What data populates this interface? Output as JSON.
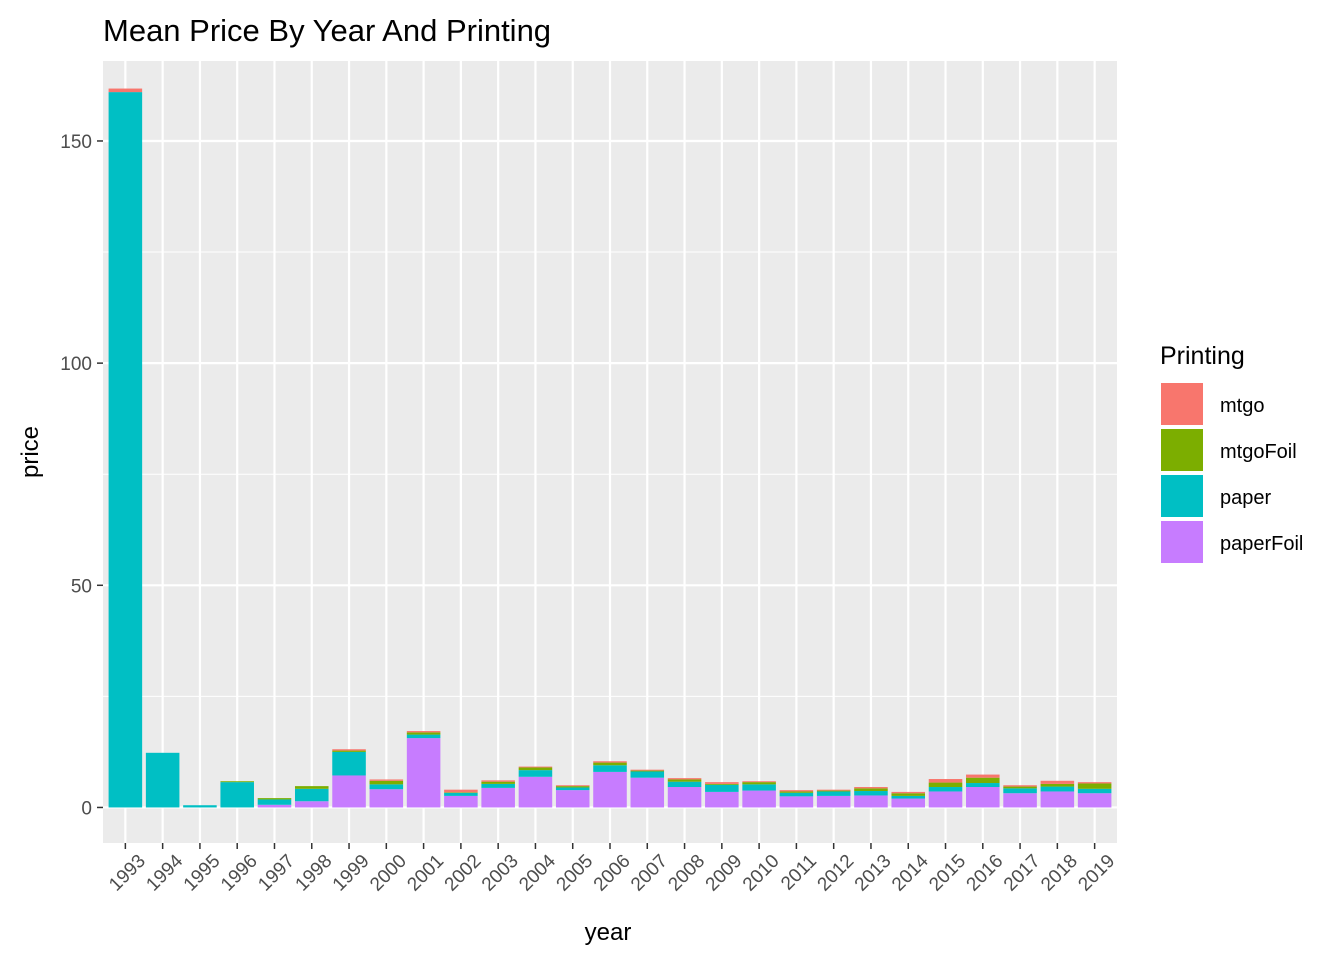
{
  "chart_data": {
    "type": "bar",
    "stacked": true,
    "title": "Mean Price By Year And Printing",
    "xlabel": "year",
    "ylabel": "price",
    "ylim": [
      -8,
      168
    ],
    "yticks": [
      0,
      50,
      100,
      150
    ],
    "grid": true,
    "legend": {
      "title": "Printing",
      "placement": "right"
    },
    "categories": [
      "1993",
      "1994",
      "1995",
      "1996",
      "1997",
      "1998",
      "1999",
      "2000",
      "2001",
      "2002",
      "2003",
      "2004",
      "2005",
      "2006",
      "2007",
      "2008",
      "2009",
      "2010",
      "2011",
      "2012",
      "2013",
      "2014",
      "2015",
      "2016",
      "2017",
      "2018",
      "2019"
    ],
    "stack_order": [
      "paperFoil",
      "paper",
      "mtgoFoil",
      "mtgo"
    ],
    "series": [
      {
        "name": "mtgo",
        "color": "#F8766D",
        "values": [
          0.8,
          0,
          0,
          0,
          0,
          0,
          0.3,
          0.3,
          0.3,
          0.6,
          0.3,
          0.2,
          0.2,
          0.3,
          0.2,
          0.3,
          0.4,
          0.2,
          0.3,
          0.2,
          0.3,
          0.3,
          0.8,
          0.7,
          0.3,
          0.7,
          0.3
        ]
      },
      {
        "name": "mtgoFoil",
        "color": "#7CAE00",
        "values": [
          0,
          0,
          0,
          0.2,
          0.3,
          0.6,
          0.3,
          0.8,
          0.5,
          0.1,
          0.5,
          0.6,
          0.3,
          0.6,
          0.2,
          0.5,
          0.2,
          0.5,
          0.3,
          0.2,
          0.6,
          0.6,
          1.0,
          1.2,
          0.4,
          0.6,
          1.2
        ]
      },
      {
        "name": "paper",
        "color": "#00BFC4",
        "values": [
          161,
          12.3,
          0.5,
          5.7,
          1.2,
          2.8,
          5.3,
          1.1,
          0.8,
          0.7,
          0.9,
          1.5,
          0.6,
          1.5,
          1.4,
          1.2,
          1.6,
          1.4,
          0.8,
          1.0,
          1.0,
          0.6,
          1.0,
          0.9,
          1.1,
          1.1,
          1.0
        ]
      },
      {
        "name": "paperFoil",
        "color": "#C77CFF",
        "values": [
          0,
          0,
          0,
          0,
          0.6,
          1.4,
          7.2,
          4.1,
          15.6,
          2.6,
          4.4,
          6.9,
          3.9,
          8.0,
          6.7,
          4.6,
          3.5,
          3.8,
          2.5,
          2.6,
          2.7,
          2.0,
          3.6,
          4.6,
          3.2,
          3.6,
          3.2
        ]
      }
    ]
  }
}
